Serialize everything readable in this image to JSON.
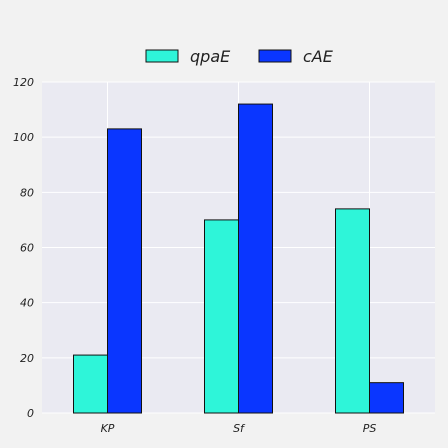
{
  "chart_data": {
    "type": "bar",
    "categories": [
      "KP",
      "Sf",
      "PS"
    ],
    "series": [
      {
        "name": "qpaE",
        "color": "#2ef5d9",
        "values": [
          21,
          70,
          74
        ]
      },
      {
        "name": "cAE",
        "color": "#0a36ff",
        "values": [
          103,
          112,
          11
        ]
      }
    ],
    "title": "",
    "xlabel": "",
    "ylabel": "",
    "ylim": [
      0,
      120
    ],
    "yticks": [
      0,
      20,
      40,
      60,
      80,
      100,
      120
    ],
    "grid": true,
    "legend_position": "top-center",
    "plot_background": "#eaeaf2",
    "grid_color": "#ffffff"
  }
}
